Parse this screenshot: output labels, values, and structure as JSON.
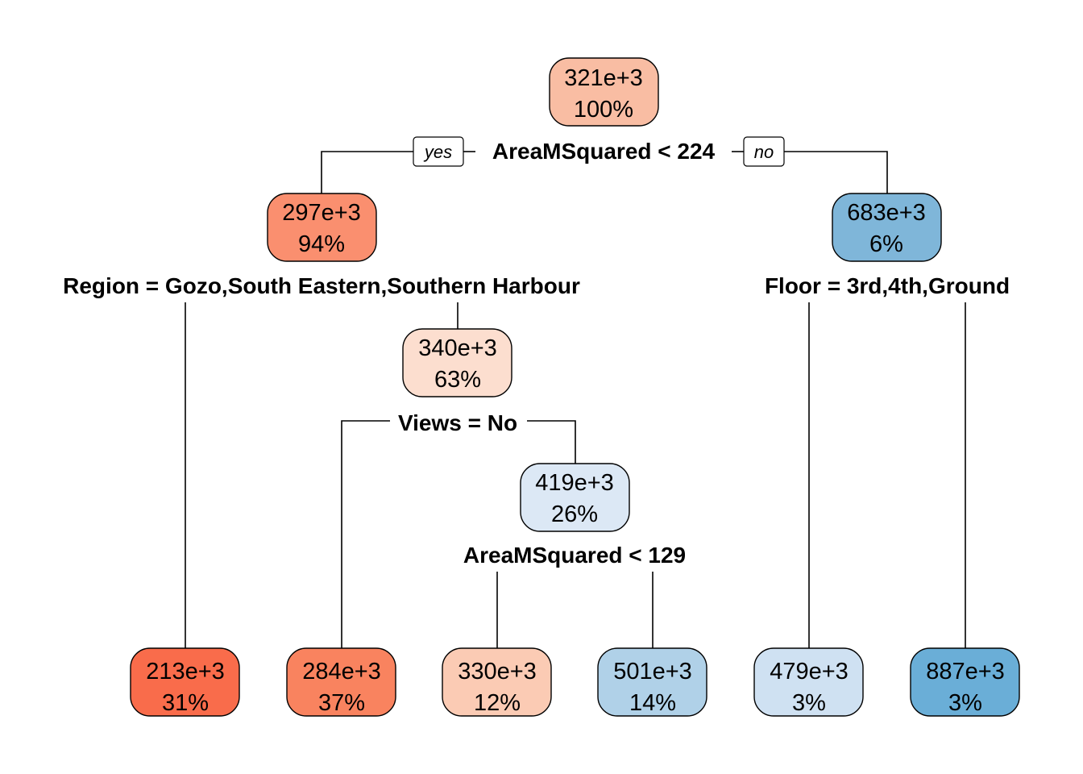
{
  "branch_labels": {
    "yes": "yes",
    "no": "no"
  },
  "nodes": {
    "root": {
      "value": "321e+3",
      "percent": "100%",
      "color": "#f9bda3"
    },
    "n2": {
      "value": "297e+3",
      "percent": "94%",
      "color": "#fa8f6f"
    },
    "n3": {
      "value": "683e+3",
      "percent": "6%",
      "color": "#7fb6d9"
    },
    "n5": {
      "value": "340e+3",
      "percent": "63%",
      "color": "#fcdecf"
    },
    "n11": {
      "value": "419e+3",
      "percent": "26%",
      "color": "#dce8f5"
    },
    "leaf4": {
      "value": "213e+3",
      "percent": "31%",
      "color": "#f96c4b"
    },
    "leaf10": {
      "value": "284e+3",
      "percent": "37%",
      "color": "#f9835f"
    },
    "leaf22": {
      "value": "330e+3",
      "percent": "12%",
      "color": "#fbcbb4"
    },
    "leaf23": {
      "value": "501e+3",
      "percent": "14%",
      "color": "#b0d1e8"
    },
    "leaf6": {
      "value": "479e+3",
      "percent": "3%",
      "color": "#cfe1f2"
    },
    "leaf7": {
      "value": "887e+3",
      "percent": "3%",
      "color": "#6aaed7"
    }
  },
  "splits": {
    "root": "AreaMSquared < 224",
    "n2": "Region = Gozo,South Eastern,Southern Harbour",
    "n3": "Floor = 3rd,4th,Ground",
    "n5": "Views = No",
    "n11": "AreaMSquared < 129"
  }
}
